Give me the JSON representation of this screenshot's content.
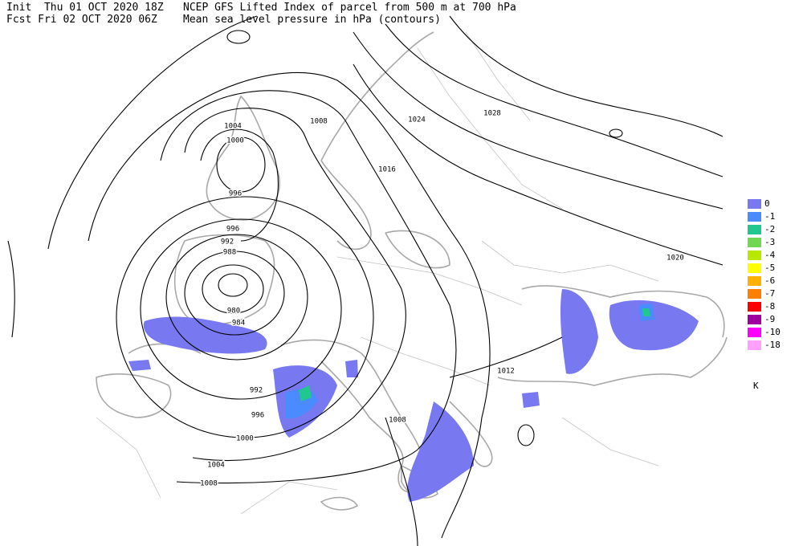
{
  "header": {
    "init": "Init  Thu 01 OCT 2020 18Z",
    "forecast": "Fcst Fri 02 OCT 2020 06Z",
    "field": "NCEP GFS Lifted Index of parcel from 500 m at 700 hPa",
    "contours": "Mean sea level pressure in hPa (contours)"
  },
  "contour_labels": [
    "1004",
    "1000",
    "996",
    "1008",
    "1024",
    "1028",
    "1016",
    "1020",
    "996",
    "992",
    "988",
    "980",
    "984",
    "992",
    "996",
    "1000",
    "1004",
    "1008",
    "1012",
    "1008"
  ],
  "legend": {
    "items": [
      {
        "label": "0",
        "color": "#7878f0"
      },
      {
        "label": "-1",
        "color": "#4a8cff"
      },
      {
        "label": "-2",
        "color": "#20c890"
      },
      {
        "label": "-3",
        "color": "#70d850"
      },
      {
        "label": "-4",
        "color": "#b8e800"
      },
      {
        "label": "-5",
        "color": "#ffff00"
      },
      {
        "label": "-6",
        "color": "#ffb000"
      },
      {
        "label": "-7",
        "color": "#ff8000"
      },
      {
        "label": "-8",
        "color": "#ff0000"
      },
      {
        "label": "-9",
        "color": "#a000a0"
      },
      {
        "label": "-10",
        "color": "#ff00ff"
      },
      {
        "label": "-18",
        "color": "#ffa0ff"
      }
    ],
    "unit": "K"
  }
}
